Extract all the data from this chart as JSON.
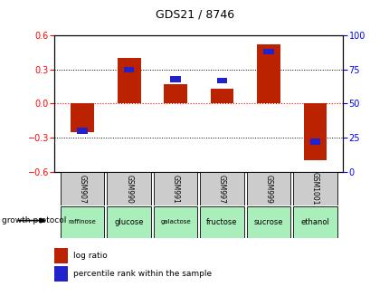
{
  "title": "GDS21 / 8746",
  "samples": [
    "GSM907",
    "GSM990",
    "GSM991",
    "GSM997",
    "GSM999",
    "GSM1001"
  ],
  "log_ratios": [
    -0.25,
    0.4,
    0.17,
    0.13,
    0.52,
    -0.5
  ],
  "percentile_ranks": [
    30,
    75,
    68,
    67,
    88,
    22
  ],
  "growth_protocol": [
    "raffinose",
    "glucose",
    "galactose",
    "fructose",
    "sucrose",
    "ethanol"
  ],
  "ylim_left": [
    -0.6,
    0.6
  ],
  "ylim_right": [
    0,
    100
  ],
  "yticks_left": [
    -0.6,
    -0.3,
    0,
    0.3,
    0.6
  ],
  "yticks_right": [
    0,
    25,
    50,
    75,
    100
  ],
  "bar_color": "#bb2200",
  "percentile_color": "#2222cc",
  "bg_color": "#ffffff",
  "plot_bg": "#ffffff",
  "legend_lr": "log ratio",
  "legend_pr": "percentile rank within the sample",
  "growth_label": "growth protocol",
  "sample_bg": "#cccccc",
  "protocol_bg": "#aaeebb"
}
